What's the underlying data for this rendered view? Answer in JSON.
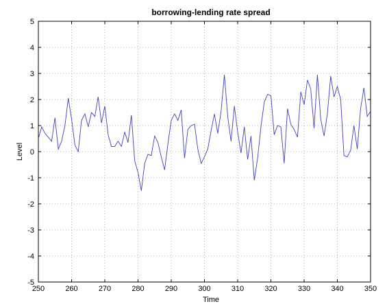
{
  "chart_data": {
    "type": "line",
    "title": "borrowing-lending rate spread",
    "xlabel": "Time",
    "ylabel": "Level",
    "xlim": [
      250,
      350
    ],
    "ylim": [
      -5,
      5
    ],
    "xticks": [
      250,
      260,
      270,
      280,
      290,
      300,
      310,
      320,
      330,
      340,
      350
    ],
    "yticks": [
      -5,
      -4,
      -3,
      -2,
      -1,
      0,
      1,
      2,
      3,
      4,
      5
    ],
    "grid": true,
    "color": "#3f3fbf",
    "series": [
      {
        "x": [
          250,
          251,
          252,
          253,
          254,
          255,
          256,
          257,
          258,
          259,
          260,
          261,
          262,
          263,
          264,
          265,
          266,
          267,
          268,
          269,
          270,
          271,
          272,
          273,
          274,
          275,
          276,
          277,
          278,
          279,
          280,
          281,
          282,
          283,
          284,
          285,
          286,
          287,
          288,
          289,
          290,
          291,
          292,
          293,
          294,
          295,
          296,
          297,
          298,
          299,
          300,
          301,
          302,
          303,
          304,
          305,
          306,
          307,
          308,
          309,
          310,
          311,
          312,
          313,
          314,
          315,
          316,
          317,
          318,
          319,
          320,
          321,
          322,
          323,
          324,
          325,
          326,
          327,
          328,
          329,
          330,
          331,
          332,
          333,
          334,
          335,
          336,
          337,
          338,
          339,
          340,
          341,
          342,
          343,
          344,
          345,
          346,
          347,
          348,
          349,
          350
        ],
        "y": [
          0.5,
          0.95,
          0.7,
          0.55,
          0.4,
          1.3,
          0.1,
          0.4,
          1.0,
          2.05,
          1.25,
          0.25,
          0.0,
          1.2,
          1.45,
          0.95,
          1.5,
          1.35,
          2.1,
          1.1,
          1.75,
          0.65,
          0.2,
          0.2,
          0.4,
          0.2,
          0.75,
          0.35,
          1.4,
          -0.35,
          -0.8,
          -1.5,
          -0.45,
          -0.1,
          -0.15,
          0.6,
          0.35,
          -0.2,
          -0.7,
          0.3,
          1.2,
          1.45,
          1.2,
          1.6,
          -0.25,
          0.85,
          1.0,
          1.05,
          0.1,
          -0.45,
          -0.2,
          0.1,
          0.8,
          1.45,
          0.7,
          1.55,
          2.95,
          1.35,
          0.4,
          1.75,
          0.75,
          -0.05,
          0.95,
          -0.3,
          0.6,
          -1.1,
          -0.25,
          0.95,
          1.9,
          2.2,
          2.15,
          0.65,
          1.0,
          0.95,
          -0.45,
          1.65,
          1.05,
          0.85,
          0.55,
          2.3,
          1.8,
          2.75,
          2.4,
          0.9,
          2.95,
          1.25,
          0.6,
          1.45,
          2.9,
          2.1,
          2.5,
          2.0,
          -0.15,
          -0.2,
          0.05,
          1.0,
          0.1,
          1.65,
          2.45,
          1.35,
          1.55
        ]
      }
    ]
  }
}
